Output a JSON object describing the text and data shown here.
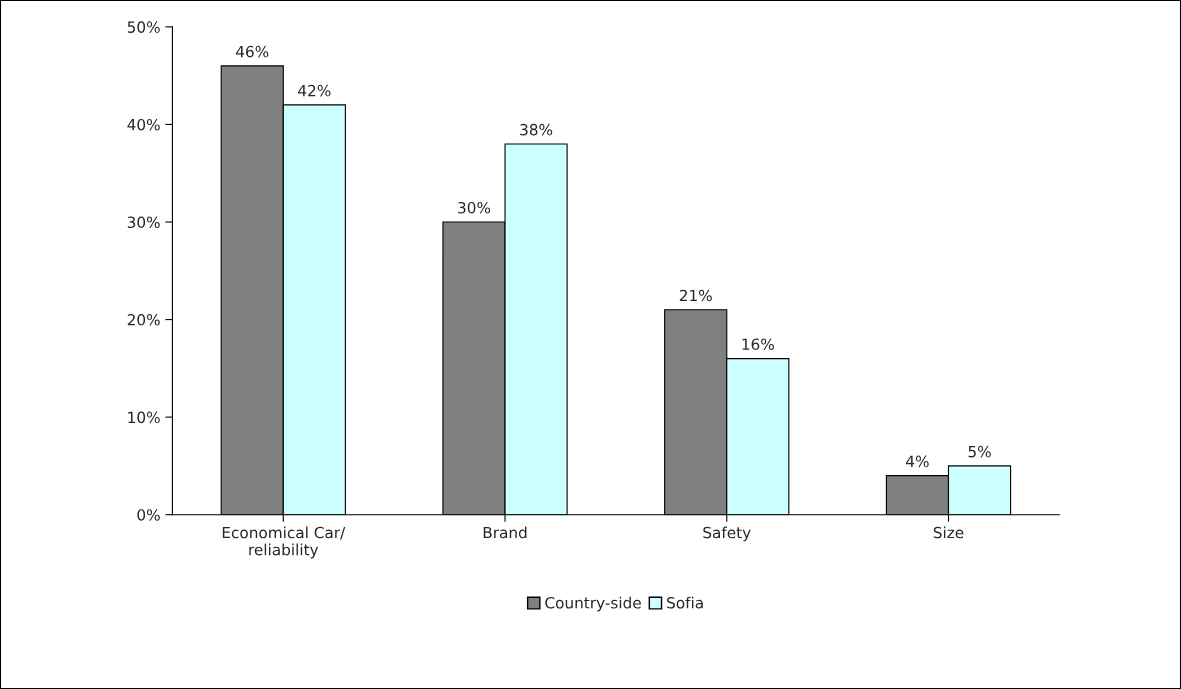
{
  "chart_data": {
    "type": "bar",
    "categories": [
      "Economical Car/\nreliability",
      "Brand",
      "Safety",
      "Size"
    ],
    "series": [
      {
        "name": "Country-side",
        "color": "#808080",
        "values": [
          46,
          30,
          21,
          4
        ],
        "value_labels": [
          "46%",
          "30%",
          "21%",
          "4%"
        ]
      },
      {
        "name": "Sofia",
        "color": "#ccffff",
        "values": [
          42,
          38,
          16,
          5
        ],
        "value_labels": [
          "42%",
          "38%",
          "16%",
          "5%"
        ]
      }
    ],
    "ylim": [
      0,
      50
    ],
    "yticks": [
      {
        "value": 0,
        "label": "0%"
      },
      {
        "value": 10,
        "label": "10%"
      },
      {
        "value": 20,
        "label": "20%"
      },
      {
        "value": 30,
        "label": "30%"
      },
      {
        "value": 40,
        "label": "40%"
      },
      {
        "value": 50,
        "label": "50%"
      }
    ],
    "grid": false,
    "legend": "bottom"
  }
}
